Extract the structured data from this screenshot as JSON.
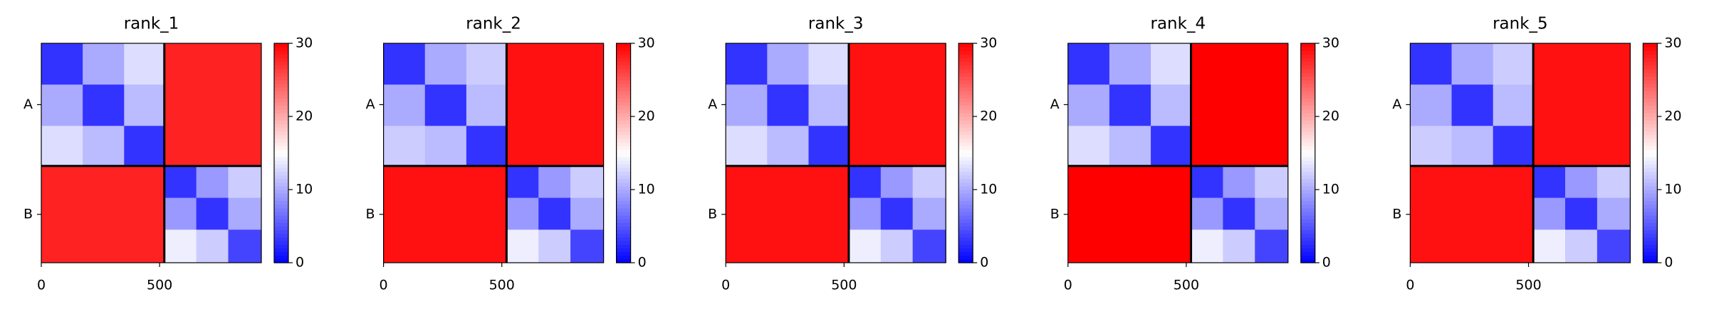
{
  "chart_data": [
    {
      "type": "heatmap",
      "title": "rank_1",
      "bins": [
        0,
        175,
        350,
        520,
        655,
        790,
        930
      ],
      "separators": [
        520
      ],
      "matrix": [
        [
          3,
          10,
          13,
          28,
          28,
          28
        ],
        [
          10,
          3,
          11,
          28,
          28,
          28
        ],
        [
          13,
          11,
          3,
          28,
          28,
          28
        ],
        [
          28,
          28,
          28,
          3,
          9,
          12
        ],
        [
          28,
          28,
          28,
          9,
          3,
          10
        ],
        [
          28,
          28,
          28,
          14,
          12,
          4
        ]
      ],
      "xlim": [
        0,
        930
      ],
      "xticks": [
        0,
        500
      ],
      "ylim": [
        930,
        0
      ],
      "yticks": [
        {
          "value": 260,
          "label": "A"
        },
        {
          "value": 725,
          "label": "B"
        }
      ],
      "clim": [
        0,
        30
      ],
      "cticks": [
        0,
        10,
        20,
        30
      ],
      "colormap": [
        "#0000ff",
        "#ffffff",
        "#ff0000"
      ]
    },
    {
      "type": "heatmap",
      "title": "rank_2",
      "bins": [
        0,
        175,
        350,
        520,
        655,
        790,
        930
      ],
      "separators": [
        520
      ],
      "matrix": [
        [
          3,
          10,
          12,
          29,
          29,
          29
        ],
        [
          10,
          3,
          11,
          29,
          29,
          29
        ],
        [
          12,
          11,
          3,
          29,
          29,
          29
        ],
        [
          29,
          29,
          29,
          3,
          9,
          12
        ],
        [
          29,
          29,
          29,
          9,
          3,
          10
        ],
        [
          29,
          29,
          29,
          14,
          12,
          4
        ]
      ],
      "xlim": [
        0,
        930
      ],
      "xticks": [
        0,
        500
      ],
      "ylim": [
        930,
        0
      ],
      "yticks": [
        {
          "value": 260,
          "label": "A"
        },
        {
          "value": 725,
          "label": "B"
        }
      ],
      "clim": [
        0,
        30
      ],
      "cticks": [
        0,
        10,
        20,
        30
      ],
      "colormap": [
        "#0000ff",
        "#ffffff",
        "#ff0000"
      ]
    },
    {
      "type": "heatmap",
      "title": "rank_3",
      "bins": [
        0,
        175,
        350,
        520,
        655,
        790,
        930
      ],
      "separators": [
        520
      ],
      "matrix": [
        [
          3,
          10,
          13,
          29,
          29,
          29
        ],
        [
          10,
          3,
          11,
          29,
          29,
          29
        ],
        [
          13,
          11,
          3,
          29,
          29,
          29
        ],
        [
          29,
          29,
          29,
          3,
          9,
          12
        ],
        [
          29,
          29,
          29,
          9,
          3,
          10
        ],
        [
          29,
          29,
          29,
          14,
          12,
          4
        ]
      ],
      "xlim": [
        0,
        930
      ],
      "xticks": [
        0,
        500
      ],
      "ylim": [
        930,
        0
      ],
      "yticks": [
        {
          "value": 260,
          "label": "A"
        },
        {
          "value": 725,
          "label": "B"
        }
      ],
      "clim": [
        0,
        30
      ],
      "cticks": [
        0,
        10,
        20,
        30
      ],
      "colormap": [
        "#0000ff",
        "#ffffff",
        "#ff0000"
      ]
    },
    {
      "type": "heatmap",
      "title": "rank_4",
      "bins": [
        0,
        175,
        350,
        520,
        655,
        790,
        930
      ],
      "separators": [
        520
      ],
      "matrix": [
        [
          3,
          10,
          13,
          30,
          30,
          30
        ],
        [
          10,
          3,
          11,
          30,
          30,
          30
        ],
        [
          13,
          11,
          3,
          30,
          30,
          30
        ],
        [
          30,
          30,
          30,
          3,
          9,
          12
        ],
        [
          30,
          30,
          30,
          9,
          3,
          10
        ],
        [
          30,
          30,
          30,
          14,
          12,
          4
        ]
      ],
      "xlim": [
        0,
        930
      ],
      "xticks": [
        0,
        500
      ],
      "ylim": [
        930,
        0
      ],
      "yticks": [
        {
          "value": 260,
          "label": "A"
        },
        {
          "value": 725,
          "label": "B"
        }
      ],
      "clim": [
        0,
        30
      ],
      "cticks": [
        0,
        10,
        20,
        30
      ],
      "colormap": [
        "#0000ff",
        "#ffffff",
        "#ff0000"
      ]
    },
    {
      "type": "heatmap",
      "title": "rank_5",
      "bins": [
        0,
        175,
        350,
        520,
        655,
        790,
        930
      ],
      "separators": [
        520
      ],
      "matrix": [
        [
          3,
          10,
          12,
          29,
          29,
          29
        ],
        [
          10,
          3,
          11,
          29,
          29,
          29
        ],
        [
          12,
          11,
          3,
          29,
          29,
          29
        ],
        [
          29,
          29,
          29,
          3,
          9,
          12
        ],
        [
          29,
          29,
          29,
          9,
          3,
          10
        ],
        [
          29,
          29,
          29,
          14,
          12,
          4
        ]
      ],
      "xlim": [
        0,
        930
      ],
      "xticks": [
        0,
        500
      ],
      "ylim": [
        930,
        0
      ],
      "yticks": [
        {
          "value": 260,
          "label": "A"
        },
        {
          "value": 725,
          "label": "B"
        }
      ],
      "clim": [
        0,
        30
      ],
      "cticks": [
        0,
        10,
        20,
        30
      ],
      "colormap": [
        "#0000ff",
        "#ffffff",
        "#ff0000"
      ]
    }
  ]
}
